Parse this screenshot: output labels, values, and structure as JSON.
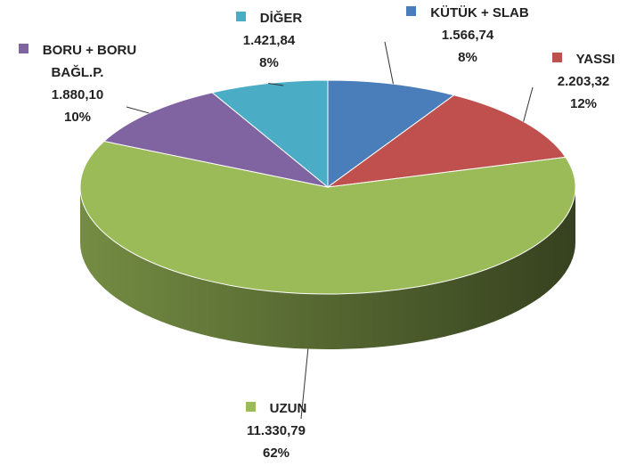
{
  "chart_data": {
    "type": "pie",
    "categories": [
      "KÜTÜK + SLAB",
      "YASSI",
      "UZUN",
      "BORU + BORU BAĞL.P.",
      "DİĞER"
    ],
    "values": [
      1566.74,
      2203.32,
      11330.79,
      1880.1,
      1421.84
    ],
    "value_labels": [
      "1.566,74",
      "2.203,32",
      "11.330,79",
      "1.880,10",
      "1.421,84"
    ],
    "percents": [
      8,
      12,
      62,
      10,
      8
    ],
    "percent_labels": [
      "8%",
      "12%",
      "62%",
      "10%",
      "8%"
    ],
    "colors": [
      "#4a7ebb",
      "#c0504d",
      "#9bbb59",
      "#8064a2",
      "#4bacc6"
    ]
  }
}
